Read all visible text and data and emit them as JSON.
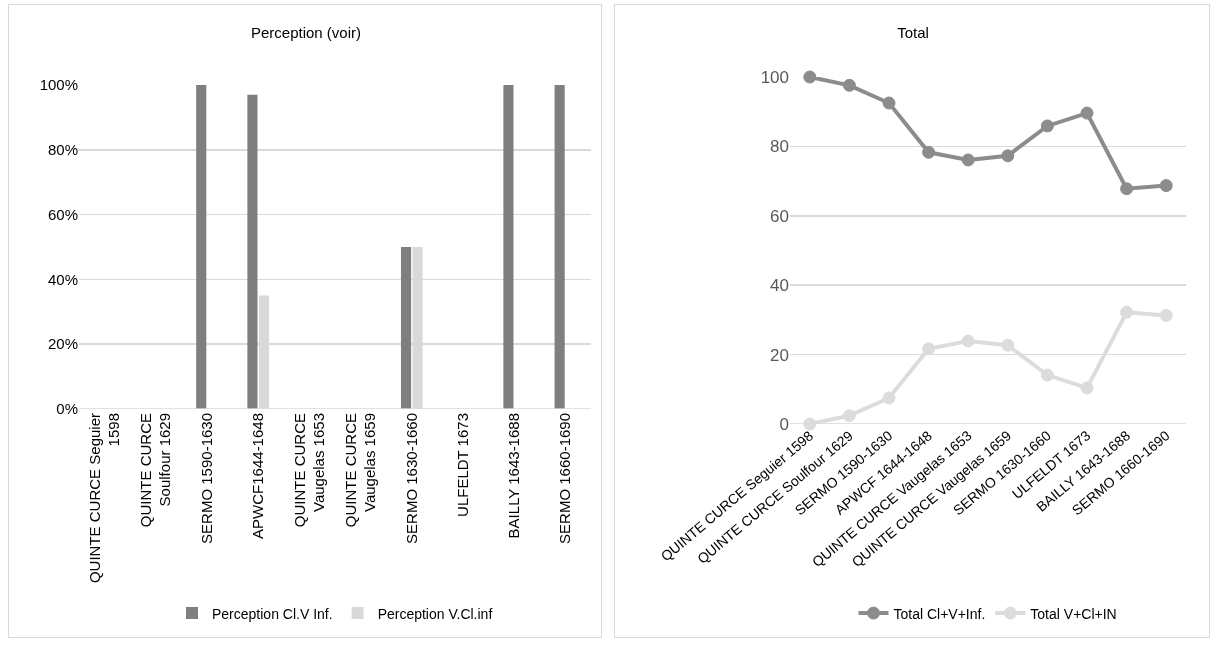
{
  "chart_data": [
    {
      "type": "bar",
      "title": "Perception (voir)",
      "categories": [
        "QUINTE CURCE Seguier 1598",
        "QUINTE CURCE Soulfour 1629",
        "SERMO 1590-1630",
        "APWCF1644-1648",
        "QUINTE CURCE Vaugelas 1653",
        "QUINTE CURCE Vaugelas 1659",
        "SERMO 1630-1660",
        "ULFELDT 1673",
        "BAILLY 1643-1688",
        "SERMO 1660-1690"
      ],
      "series": [
        {
          "name": "Perception Cl.V Inf.",
          "color": "#7f7f7f",
          "values": [
            0,
            0,
            100,
            97,
            0,
            0,
            50,
            0,
            100,
            100
          ]
        },
        {
          "name": "Perception V.Cl.inf",
          "color": "#d9d9d9",
          "values": [
            0,
            0,
            0,
            35,
            0,
            0,
            50,
            0,
            0,
            0
          ]
        }
      ],
      "ylim": [
        0,
        100
      ],
      "yticks": [
        {
          "value": 0,
          "label": "0%"
        },
        {
          "value": 20,
          "label": "20%"
        },
        {
          "value": 40,
          "label": "40%"
        },
        {
          "value": 60,
          "label": "60%"
        },
        {
          "value": 80,
          "label": "80%"
        },
        {
          "value": 100,
          "label": "100%"
        }
      ],
      "grid": "y",
      "legend": "bottom"
    },
    {
      "type": "line",
      "title": "Total",
      "categories": [
        "QUINTE CURCE Seguier 1598",
        "QUINTE CURCE Soulfour 1629",
        "SERMO 1590-1630",
        "APWCF 1644-1648",
        "QUINTE CURCE Vaugelas 1653",
        "QUINTE CURCE Vaugelas 1659",
        "SERMO 1630-1660",
        "ULFELDT 1673",
        "BAILLY 1643-1688",
        "SERMO 1660-1690"
      ],
      "series": [
        {
          "name": "Total Cl+V+Inf.",
          "color": "#8c8c8c",
          "values": [
            100,
            97.6,
            92.5,
            78.3,
            76.1,
            77.3,
            85.9,
            89.6,
            67.8,
            68.7
          ]
        },
        {
          "name": "Total V+Cl+IN",
          "color": "#dcdcdc",
          "values": [
            0,
            2.4,
            7.5,
            21.7,
            23.9,
            22.7,
            14.1,
            10.4,
            32.2,
            31.3
          ]
        }
      ],
      "ylim": [
        0,
        100
      ],
      "yticks": [
        0,
        20,
        40,
        60,
        80,
        100
      ],
      "grid": "y",
      "legend": "bottom",
      "marker": "circle",
      "line_style": "solid"
    }
  ]
}
